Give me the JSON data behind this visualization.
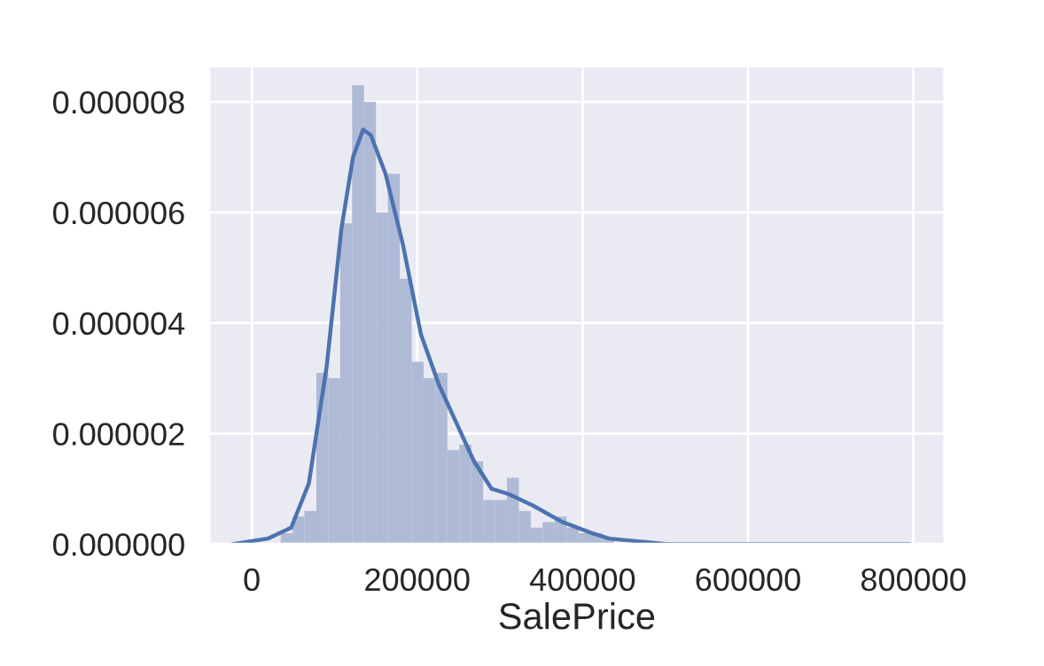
{
  "chart_data": {
    "type": "histogram",
    "xlabel": "SalePrice",
    "color": "#aebad6",
    "bins": [
      34900,
      49302,
      63704,
      78106,
      92508,
      106910,
      121312,
      135714,
      150116,
      164518,
      178920,
      193322,
      207724,
      222126,
      236528,
      250930,
      265332,
      279734,
      294136,
      308538,
      322940,
      337342,
      351744,
      366146,
      380548,
      394950,
      409352,
      423754,
      438156,
      452558,
      466960,
      481362,
      495764,
      510166,
      524568,
      538970,
      553372,
      567774,
      582176,
      596578,
      610980,
      625382,
      639784,
      654186,
      668588,
      682990,
      697392,
      711794,
      726196,
      740598,
      755000
    ],
    "values": [
      2e-07,
      5e-07,
      6e-07,
      3.1e-06,
      3e-06,
      5.8e-06,
      8.3e-06,
      8e-06,
      6e-06,
      6.7e-06,
      4.8e-06,
      3.3e-06,
      3e-06,
      3.1e-06,
      1.7e-06,
      1.8e-06,
      1.5e-06,
      8e-07,
      8e-07,
      1.2e-06,
      6e-07,
      3e-07,
      4e-07,
      5e-07,
      3e-07,
      2e-07,
      2e-07,
      1e-07,
      0,
      0,
      0,
      0,
      0,
      0,
      0,
      0,
      0,
      0,
      0,
      0,
      0,
      0,
      0,
      0,
      0,
      0,
      0,
      0,
      0,
      0
    ],
    "series": [
      {
        "type": "line",
        "color": "#4c72b0",
        "x": [
          -23500,
          19200,
          47700,
          69000,
          90400,
          108300,
          122400,
          134600,
          143900,
          161700,
          183000,
          204400,
          225800,
          247200,
          268600,
          290000,
          311400,
          339800,
          375400,
          411000,
          432300,
          503000,
          546400,
          610500,
          745800,
          795600
        ],
        "values": [
          0,
          1e-07,
          3e-07,
          1.1e-06,
          3.2e-06,
          5.7e-06,
          7e-06,
          7.5e-06,
          7.4e-06,
          6.7e-06,
          5.4e-06,
          3.8e-06,
          2.9e-06,
          2.2e-06,
          1.5e-06,
          1e-06,
          9e-07,
          7e-07,
          4e-07,
          2e-07,
          1e-07,
          0,
          0,
          0,
          0,
          0
        ]
      }
    ],
    "xlim": [
      -52000,
      838000
    ],
    "xticks": [
      0,
      200000,
      400000,
      600000,
      800000
    ],
    "ylim": [
      0,
      8.65e-06
    ],
    "yticks": [
      {
        "value": 0,
        "label": "0.000000"
      },
      {
        "value": 2e-06,
        "label": "0.000002"
      },
      {
        "value": 4e-06,
        "label": "0.000004"
      },
      {
        "value": 6e-06,
        "label": "0.000006"
      },
      {
        "value": 8e-06,
        "label": "0.000008"
      }
    ],
    "grid": true
  }
}
